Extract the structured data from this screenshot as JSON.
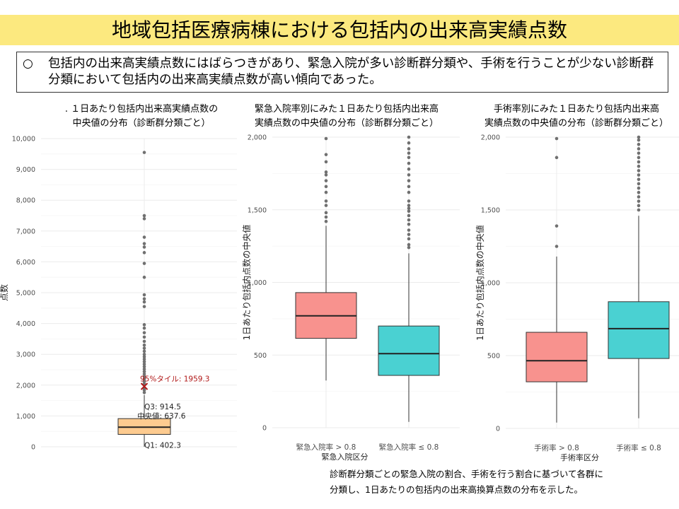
{
  "title": "地域包括医療病棟における包括内の出来高実績点数",
  "summary": {
    "bullet": "○",
    "text": "包括内の出来高実績点数にはばらつきがあり、緊急入院が多い診断群分類や、手術を行うことが少ない診断群分類において包括内の出来高実績点数が高い傾向であった。"
  },
  "chart_titles": {
    "left": {
      "line1": "１日あたり包括内出来高実績点数の",
      "line2": "中央値の分布（診断群分類ごと）",
      "mark": "."
    },
    "middle": {
      "line1": "緊急入院率別にみた１日あたり包括内出来高",
      "line2": "実績点数の中央値の分布（診断群分類ごと）"
    },
    "right": {
      "line1": "手術率別にみた１日あたり包括内出来高",
      "line2": "実績点数の中央値の分布（診断群分類ごと）"
    }
  },
  "footnote": {
    "line1": "診断群分類ごとの緊急入院の割合、手術を行う割合に基づいて各群に",
    "line2": "分類し、1日あたりの包括内の出来高換算点数の分布を示した。"
  },
  "colors": {
    "title_bg": "#fce97f",
    "left_box": "#fdcb90",
    "group_red": "#f8928e",
    "group_teal": "#4ad1d2",
    "outlier": "#707070",
    "p95_marker": "#b01818",
    "grid": "#ebebeb"
  },
  "chart_data": [
    {
      "type": "box",
      "ylabel": "点数",
      "ylim": [
        0,
        10000
      ],
      "yticks": [
        0,
        1000,
        2000,
        3000,
        4000,
        5000,
        6000,
        7000,
        8000,
        9000,
        10000
      ],
      "ytick_labels": [
        "0",
        "1,000",
        "2,000",
        "3,000",
        "4,000",
        "5,000",
        "6,000",
        "7,000",
        "8,000",
        "9,000",
        "10,000"
      ],
      "box": {
        "whisker_low": 0,
        "q1": 402.3,
        "median": 637.6,
        "q3": 914.5,
        "whisker_high": 1680
      },
      "outliers": [
        1760,
        1840,
        1900,
        2040,
        2120,
        2200,
        2280,
        2360,
        2440,
        2520,
        2600,
        2680,
        2760,
        2840,
        2920,
        3000,
        3100,
        3200,
        3300,
        3420,
        3560,
        3700,
        3850,
        3960,
        4550,
        4700,
        4800,
        4930,
        5500,
        5950,
        6300,
        6480,
        6590,
        6800,
        7400,
        7500,
        9550
      ],
      "p95": 1959.3,
      "labels": {
        "p95": "95%タイル: 1959.3",
        "q3": "Q3: 914.5",
        "median": "中央値: 637.6",
        "q1": "Q1: 402.3"
      }
    },
    {
      "type": "box",
      "ylabel": "1日あたり包括内点数の中央値",
      "xlabel": "緊急入院区分",
      "ylim": [
        0,
        2000
      ],
      "yticks": [
        0,
        500,
        1000,
        1500,
        2000
      ],
      "ytick_labels": [
        "0",
        "500",
        "1,000",
        "1,500",
        "2,000"
      ],
      "categories": [
        "緊急入院率 > 0.8",
        "緊急入院率 ≤ 0.8"
      ],
      "boxes": [
        {
          "whisker_low": 325,
          "q1": 615,
          "median": 770,
          "q3": 930,
          "whisker_high": 1390,
          "outliers": [
            1420,
            1450,
            1480,
            1530,
            1560,
            1620,
            1660,
            1700,
            1740,
            1760,
            1830,
            1880,
            1990
          ]
        },
        {
          "whisker_low": 40,
          "q1": 360,
          "median": 510,
          "q3": 700,
          "whisker_high": 1200,
          "outliers": [
            1240,
            1260,
            1300,
            1330,
            1360,
            1400,
            1430,
            1460,
            1490,
            1510,
            1530,
            1560,
            1620,
            1660,
            1700,
            1740,
            1780,
            1820,
            1860,
            1890,
            1920,
            1960,
            2000
          ]
        }
      ]
    },
    {
      "type": "box",
      "ylabel": "1日あたり包括内点数の中央値",
      "xlabel": "手術率区分",
      "ylim": [
        0,
        2000
      ],
      "yticks": [
        0,
        500,
        1000,
        1500,
        2000
      ],
      "ytick_labels": [
        "0",
        "500",
        "1,000",
        "1,500",
        "2,000"
      ],
      "categories": [
        "手術率 > 0.8",
        "手術率 ≤ 0.8"
      ],
      "boxes": [
        {
          "whisker_low": 40,
          "q1": 320,
          "median": 465,
          "q3": 660,
          "whisker_high": 1180,
          "outliers": [
            1250,
            1390,
            1860,
            1990
          ]
        },
        {
          "whisker_low": 70,
          "q1": 480,
          "median": 685,
          "q3": 870,
          "whisker_high": 1460,
          "outliers": [
            1500,
            1530,
            1560,
            1590,
            1620,
            1650,
            1680,
            1710,
            1740,
            1770,
            1800,
            1830,
            1860,
            1890,
            1920,
            1950,
            1980,
            2000
          ]
        }
      ]
    }
  ]
}
